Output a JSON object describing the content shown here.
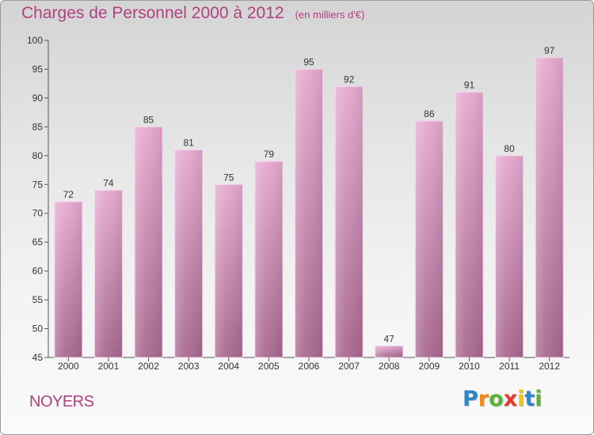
{
  "title": "Charges de Personnel 2000 à 2012",
  "subtitle": "(en milliers d'€)",
  "place": "NOYERS",
  "logo": {
    "letters": [
      "P",
      "r",
      "o",
      "x",
      "i",
      "t",
      "i"
    ],
    "colors": [
      "#2e86c8",
      "#f08a1c",
      "#58b332",
      "#e8382f",
      "#f2c511",
      "#2e86c8",
      "#58b332"
    ]
  },
  "colors": {
    "bar_top": "#e6a9d0",
    "bar_bottom": "#a8678f",
    "title": "#b0407f"
  },
  "chart_data": {
    "type": "bar",
    "categories": [
      "2000",
      "2001",
      "2002",
      "2003",
      "2004",
      "2005",
      "2006",
      "2007",
      "2008",
      "2009",
      "2010",
      "2011",
      "2012"
    ],
    "values": [
      72,
      74,
      85,
      81,
      75,
      79,
      95,
      92,
      47,
      86,
      91,
      80,
      97
    ],
    "ylim": [
      45,
      100
    ],
    "yticks": [
      45,
      50,
      55,
      60,
      65,
      70,
      75,
      80,
      85,
      90,
      95,
      100
    ],
    "grid": false,
    "legend": "none"
  }
}
